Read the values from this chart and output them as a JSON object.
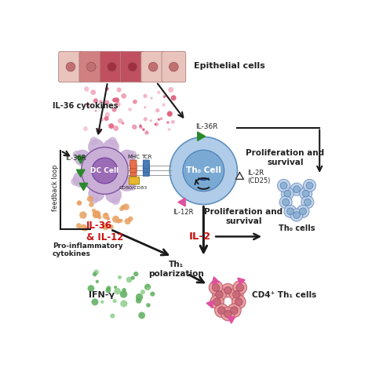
{
  "bg_color": "#ffffff",
  "epithelial_cells_label": "Epithelial cells",
  "il36_cytokines_label": "IL-36 cytokines",
  "il36r_label": "IL-36R",
  "dc_cell_label": "DC Cell",
  "th0_cell_label": "Th₀ Cell",
  "mhc_label": "MHC",
  "tcr_label": "TCR",
  "cd_label": "CD80/CD83",
  "il12r_label": "IL-12R",
  "il2r_label": "IL-2R\n(CD25)",
  "il36_il12_label": "IL-36\n& IL-12",
  "feedback_label": "feedback loop",
  "pro_inflam_label": "Pro-inflammatory\ncytokines",
  "il2_label": "IL-2",
  "prolif1_label": "Proliferation and\nsurvival",
  "prolif2_label": "Proliferation and\nsurvival",
  "th1_polar_label": "Th₁\npolarization",
  "th0_cells_label": "Th₀ cells",
  "cd4_th1_label": "CD4⁺ Th₁ cells",
  "ifng_label": "IFN-γ",
  "epithelial_light": "#e8c4bc",
  "epithelial_dark": "#c05060",
  "epithelial_mid": "#d08080",
  "dc_outer_color": "#c9aed6",
  "dc_inner_color": "#9b6bb5",
  "th0_outer_color": "#b0cce8",
  "th0_inner_color": "#7aaad4",
  "th0s_outer_color": "#b8d0e8",
  "th0s_inner_color": "#8ab0d0",
  "cd4_outer_color": "#e89898",
  "cd4_inner_color": "#c86878",
  "mhc_color": "#e8704a",
  "tcr_color": "#4a7ab5",
  "cd_color": "#e8b830",
  "il36_dot_color": "#e06080",
  "il36_dot_light": "#f0a0b8",
  "orange_dot_color": "#e8a060",
  "green_dot_color": "#60b060",
  "green_dot_light": "#90d090",
  "green_tri_color": "#2a8a2a",
  "red_text_color": "#cc1010",
  "black_color": "#1a1a1a",
  "pink_tri_color": "#e050a0",
  "text_color": "#222222"
}
